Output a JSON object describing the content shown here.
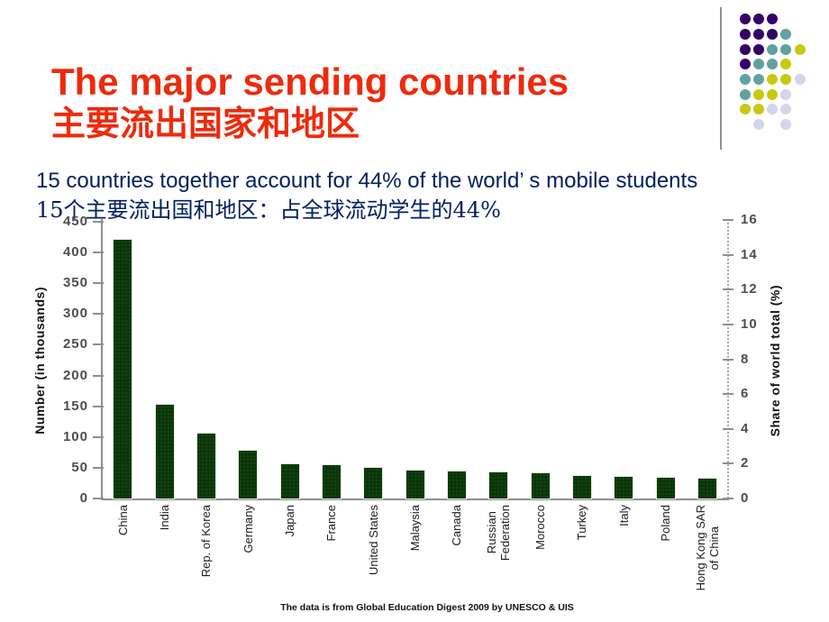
{
  "header": {
    "title_en": "The major sending countries",
    "title_zh": "主要流出国家和地区",
    "title_color": "#ee2a0c"
  },
  "subtitle": {
    "line1": "15 countries together account for 44% of the world’ s mobile students",
    "line2": "15个主要流出国和地区：占全球流动学生的44%",
    "color": "#002060"
  },
  "decoration": {
    "colors": {
      "P": "#330066",
      "T": "#62a1a1",
      "Y": "#c9c911",
      "L": "#d4d4ec"
    },
    "pattern": [
      "PPP..",
      "PPPT.",
      "PPTTY",
      "PTTY.",
      "TTYYL",
      "TYYL.",
      "YYLL.",
      ".L.L."
    ]
  },
  "chart_data": {
    "type": "bar",
    "title": "",
    "categories": [
      "China",
      "India",
      "Rep. of Korea",
      "Germany",
      "Japan",
      "France",
      "United States",
      "Malaysia",
      "Canada",
      "Russian\nFederation",
      "Morocco",
      "Turkey",
      "Italy",
      "Poland",
      "Hong Kong SAR\nof China"
    ],
    "values": [
      421,
      153,
      105,
      77,
      55,
      54,
      50,
      46,
      44,
      43,
      41,
      37,
      35,
      33,
      32
    ],
    "share_percent": [
      15.0,
      5.4,
      3.7,
      2.7,
      2.0,
      1.9,
      1.8,
      1.6,
      1.6,
      1.5,
      1.5,
      1.3,
      1.2,
      1.2,
      1.1
    ],
    "ylabel_left": "Number (in thousands)",
    "ylabel_right": "Share of world total (%)",
    "xlabel": "",
    "left_ticks": [
      0,
      50,
      100,
      150,
      200,
      250,
      300,
      350,
      400,
      450
    ],
    "right_ticks": [
      0,
      2,
      4,
      6,
      8,
      10,
      12,
      14,
      16
    ],
    "left_ylim": [
      0,
      450
    ],
    "right_ylim": [
      0,
      16
    ],
    "bar_color": "#0a3508",
    "grid": false,
    "legend": false
  },
  "footer": {
    "source": "The data is from Global Education Digest 2009 by UNESCO & UIS"
  }
}
